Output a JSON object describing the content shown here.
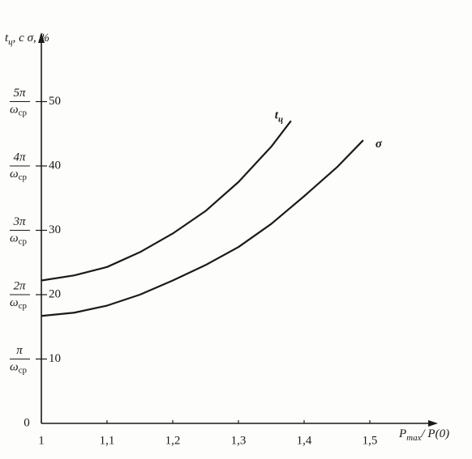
{
  "chart_data": {
    "type": "line",
    "ylabel": {
      "text": "t",
      "sub": "ц",
      "rest": ", с   σ, %"
    },
    "xlabel": {
      "text": "P",
      "sub": "max",
      "rest": "/ P(0)"
    },
    "xlim": [
      1,
      1.6
    ],
    "ylim": [
      0,
      60
    ],
    "xticks": [
      1,
      {
        "value": 1.1,
        "label": "1,1"
      },
      {
        "value": 1.2,
        "label": "1,2"
      },
      {
        "value": 1.3,
        "label": "1,3"
      },
      {
        "value": 1.4,
        "label": "1,4"
      },
      {
        "value": 1.5,
        "label": "1,5"
      }
    ],
    "yticks": [
      0,
      10,
      20,
      30,
      40,
      50
    ],
    "time_ticks": [
      {
        "value": 10,
        "numerator": "π",
        "denominator": "ω",
        "denominator_sub": "ср"
      },
      {
        "value": 20,
        "numerator": "2π",
        "denominator": "ω",
        "denominator_sub": "ср"
      },
      {
        "value": 30,
        "numerator": "3π",
        "denominator": "ω",
        "denominator_sub": "ср"
      },
      {
        "value": 40,
        "numerator": "4π",
        "denominator": "ω",
        "denominator_sub": "ср"
      },
      {
        "value": 50,
        "numerator": "5π",
        "denominator": "ω",
        "denominator_sub": "ср"
      }
    ],
    "series": [
      {
        "name": "t",
        "name_sub": "ц",
        "color": "#1a1a1a",
        "x": [
          1,
          1.05,
          1.1,
          1.15,
          1.2,
          1.25,
          1.3,
          1.35,
          1.38
        ],
        "values": [
          22.2,
          23,
          24.3,
          26.6,
          29.5,
          33,
          37.5,
          43,
          47
        ]
      },
      {
        "name": "σ",
        "color": "#1a1a1a",
        "x": [
          1,
          1.05,
          1.1,
          1.15,
          1.2,
          1.25,
          1.3,
          1.35,
          1.4,
          1.45,
          1.49
        ],
        "values": [
          16.7,
          17.2,
          18.3,
          20,
          22.2,
          24.6,
          27.4,
          31,
          35.3,
          39.8,
          44
        ]
      }
    ]
  }
}
